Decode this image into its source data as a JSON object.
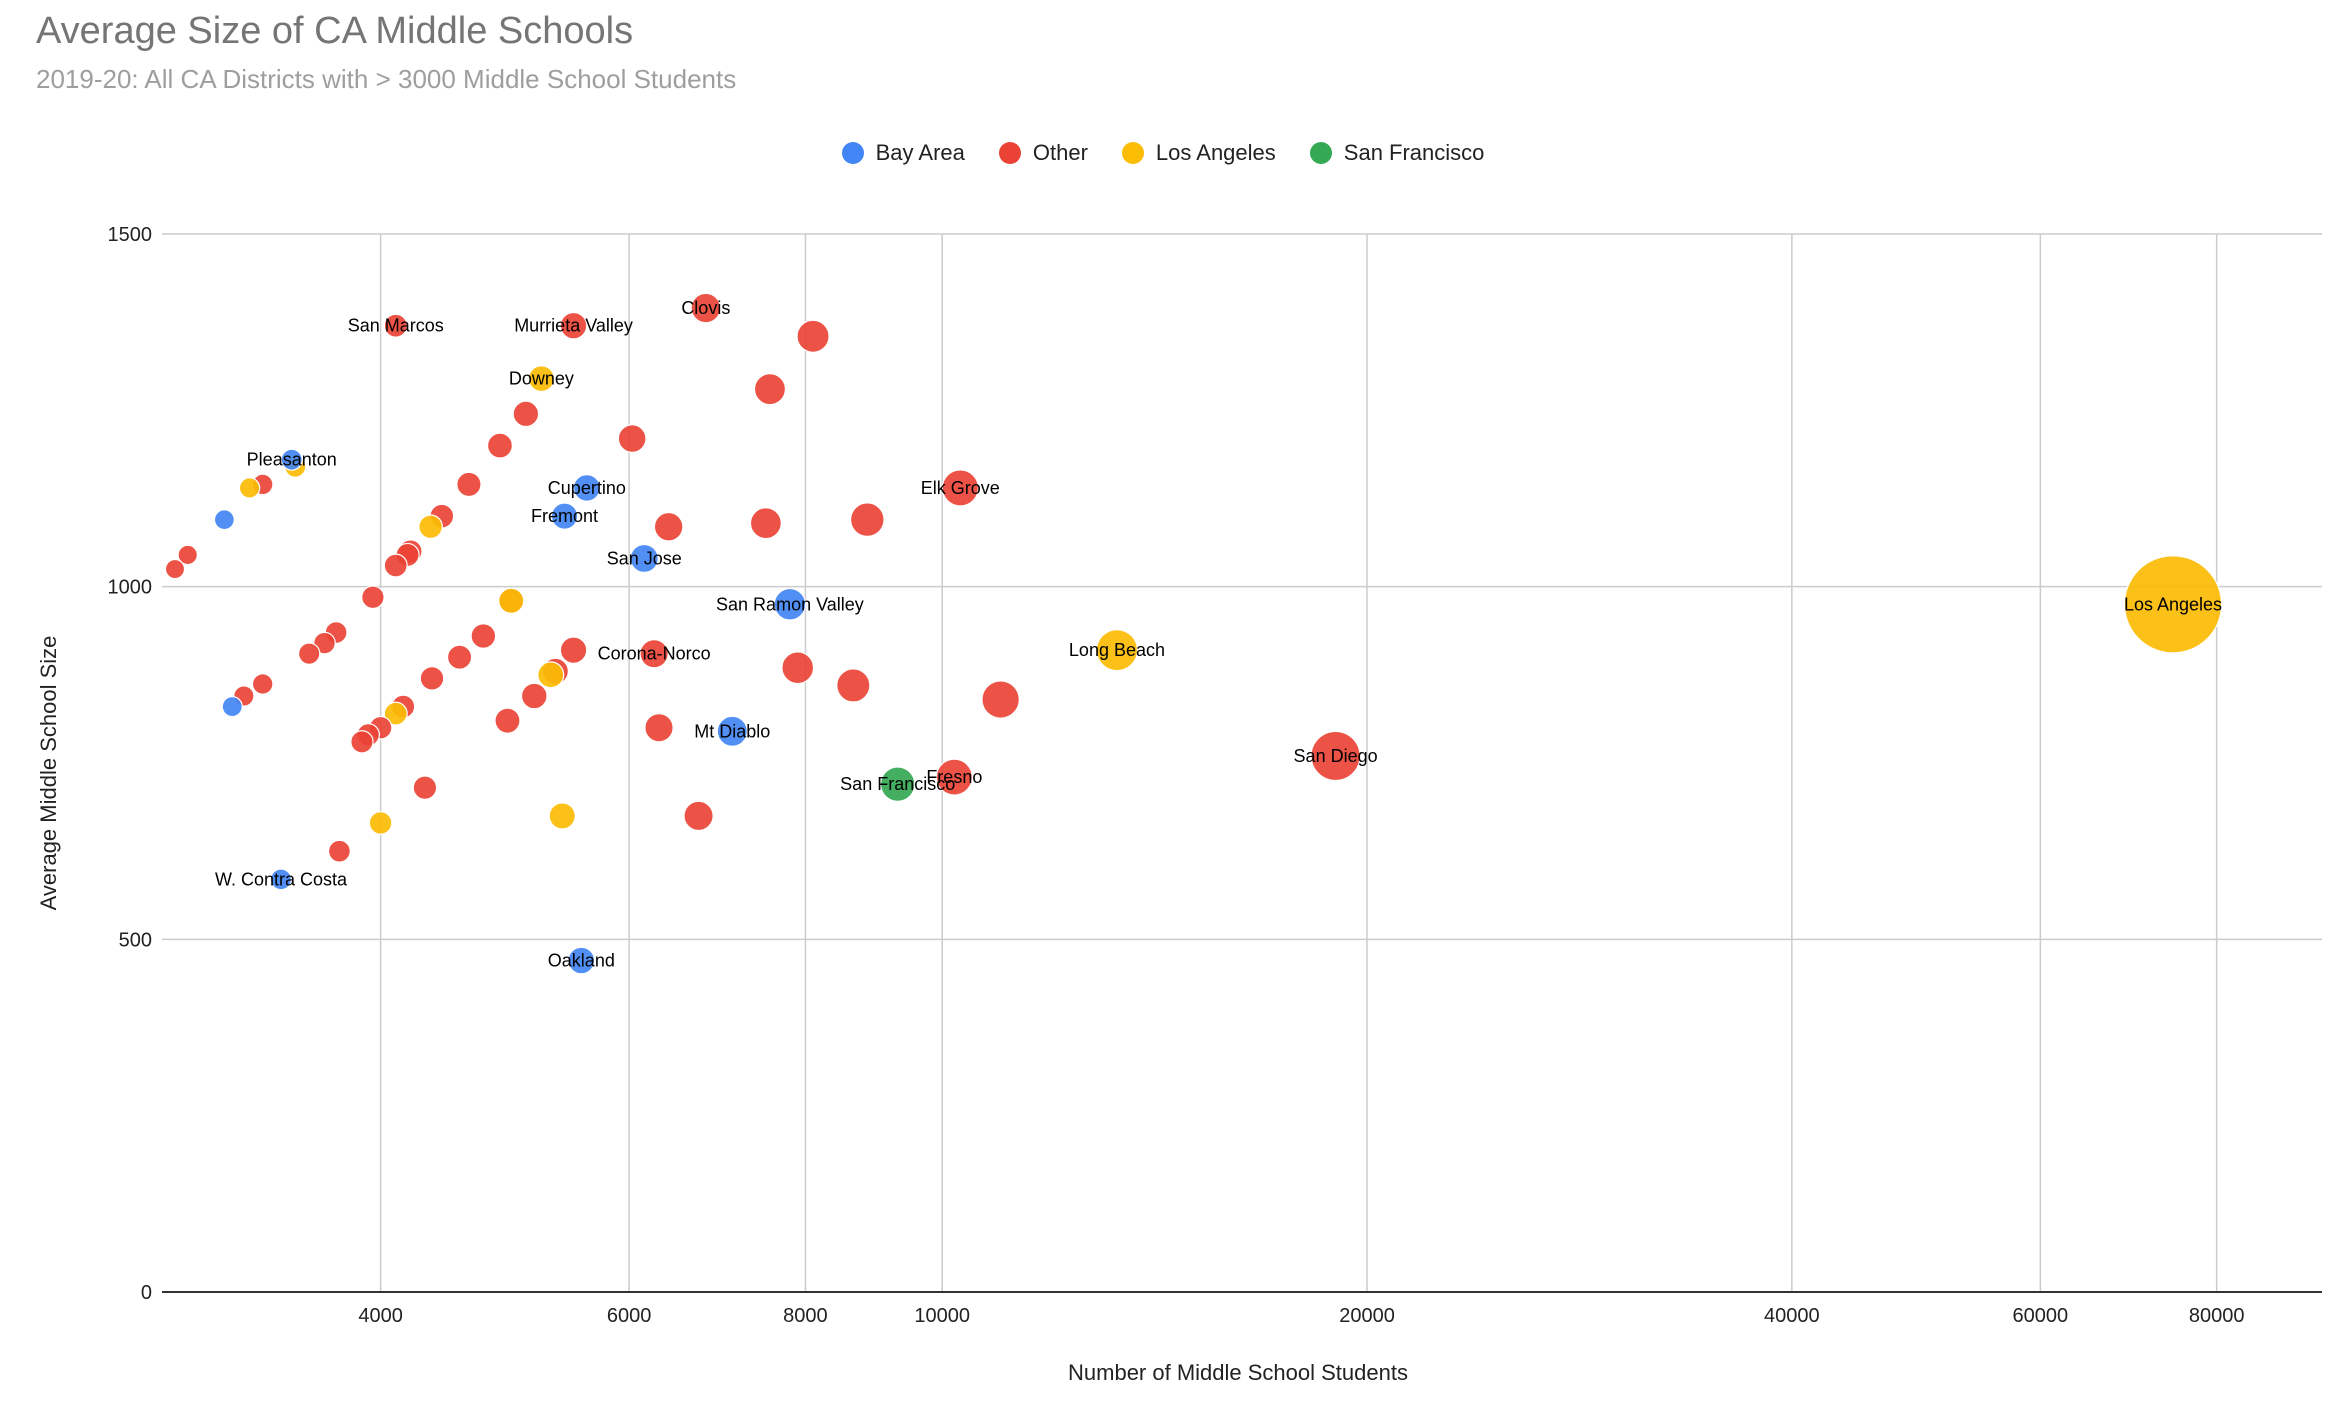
{
  "chart_data": {
    "type": "scatter",
    "title": "Average Size of CA Middle Schools",
    "subtitle": "2019-20: All CA Districts with > 3000 Middle School Students",
    "xlabel": "Number of Middle School Students",
    "ylabel": "Average Middle School Size",
    "x_scale": "log",
    "xlim": [
      2800,
      95000
    ],
    "ylim": [
      0,
      1500
    ],
    "x_ticks": [
      4000,
      6000,
      8000,
      10000,
      20000,
      40000,
      60000,
      80000
    ],
    "y_ticks": [
      0,
      500,
      1000,
      1500
    ],
    "grid": true,
    "legend_position": "top",
    "colors": {
      "Bay Area": "#4285f4",
      "Other": "#ea4335",
      "Los Angeles": "#fbbc04",
      "San Francisco": "#34a853"
    },
    "series": [
      {
        "name": "Bay Area",
        "points": [
          {
            "x": 3100,
            "y": 1095,
            "label": ""
          },
          {
            "x": 3140,
            "y": 830,
            "label": ""
          },
          {
            "x": 3460,
            "y": 1180,
            "label": "Pleasanton"
          },
          {
            "x": 3400,
            "y": 585,
            "label": "W. Contra Costa"
          },
          {
            "x": 5400,
            "y": 1100,
            "label": "Fremont"
          },
          {
            "x": 5600,
            "y": 1140,
            "label": "Cupertino"
          },
          {
            "x": 6150,
            "y": 1040,
            "label": "San Jose"
          },
          {
            "x": 5550,
            "y": 470,
            "label": "Oakland"
          },
          {
            "x": 7100,
            "y": 795,
            "label": "Mt Diablo"
          },
          {
            "x": 7800,
            "y": 975,
            "label": "San Ramon Valley"
          }
        ]
      },
      {
        "name": "Other",
        "points": [
          {
            "x": 2860,
            "y": 1025,
            "label": ""
          },
          {
            "x": 2920,
            "y": 1045,
            "label": ""
          },
          {
            "x": 3200,
            "y": 845,
            "label": ""
          },
          {
            "x": 3300,
            "y": 862,
            "label": ""
          },
          {
            "x": 3300,
            "y": 1145,
            "label": ""
          },
          {
            "x": 3560,
            "y": 905,
            "label": ""
          },
          {
            "x": 3650,
            "y": 920,
            "label": ""
          },
          {
            "x": 3720,
            "y": 935,
            "label": ""
          },
          {
            "x": 3740,
            "y": 625,
            "label": ""
          },
          {
            "x": 3880,
            "y": 780,
            "label": ""
          },
          {
            "x": 3920,
            "y": 790,
            "label": ""
          },
          {
            "x": 3950,
            "y": 985,
            "label": ""
          },
          {
            "x": 4000,
            "y": 800,
            "label": ""
          },
          {
            "x": 4100,
            "y": 1030,
            "label": ""
          },
          {
            "x": 4100,
            "y": 1370,
            "label": "San Marcos"
          },
          {
            "x": 4150,
            "y": 830,
            "label": ""
          },
          {
            "x": 4180,
            "y": 1045,
            "label": ""
          },
          {
            "x": 4200,
            "y": 1050,
            "label": ""
          },
          {
            "x": 4300,
            "y": 715,
            "label": ""
          },
          {
            "x": 4350,
            "y": 870,
            "label": ""
          },
          {
            "x": 4420,
            "y": 1100,
            "label": ""
          },
          {
            "x": 4550,
            "y": 900,
            "label": ""
          },
          {
            "x": 4620,
            "y": 1145,
            "label": ""
          },
          {
            "x": 4730,
            "y": 930,
            "label": ""
          },
          {
            "x": 4860,
            "y": 1200,
            "label": ""
          },
          {
            "x": 4920,
            "y": 810,
            "label": ""
          },
          {
            "x": 4950,
            "y": 980,
            "label": ""
          },
          {
            "x": 5070,
            "y": 1245,
            "label": ""
          },
          {
            "x": 5140,
            "y": 845,
            "label": ""
          },
          {
            "x": 5320,
            "y": 880,
            "label": ""
          },
          {
            "x": 5480,
            "y": 910,
            "label": ""
          },
          {
            "x": 5480,
            "y": 1370,
            "label": "Murrieta Valley"
          },
          {
            "x": 6030,
            "y": 1210,
            "label": ""
          },
          {
            "x": 6250,
            "y": 905,
            "label": "Corona-Norco"
          },
          {
            "x": 6300,
            "y": 800,
            "label": ""
          },
          {
            "x": 6400,
            "y": 1085,
            "label": ""
          },
          {
            "x": 6800,
            "y": 1395,
            "label": "Clovis"
          },
          {
            "x": 6720,
            "y": 675,
            "label": ""
          },
          {
            "x": 7500,
            "y": 1090,
            "label": ""
          },
          {
            "x": 7550,
            "y": 1280,
            "label": ""
          },
          {
            "x": 7900,
            "y": 885,
            "label": ""
          },
          {
            "x": 8100,
            "y": 1355,
            "label": ""
          },
          {
            "x": 8650,
            "y": 860,
            "label": ""
          },
          {
            "x": 8850,
            "y": 1095,
            "label": ""
          },
          {
            "x": 10200,
            "y": 730,
            "label": "Fresno"
          },
          {
            "x": 10300,
            "y": 1140,
            "label": "Elk Grove"
          },
          {
            "x": 11000,
            "y": 840,
            "label": ""
          },
          {
            "x": 19000,
            "y": 760,
            "label": "San Diego"
          }
        ]
      },
      {
        "name": "Los Angeles",
        "points": [
          {
            "x": 3230,
            "y": 1140,
            "label": ""
          },
          {
            "x": 3480,
            "y": 1170,
            "label": ""
          },
          {
            "x": 4000,
            "y": 665,
            "label": ""
          },
          {
            "x": 4100,
            "y": 820,
            "label": ""
          },
          {
            "x": 4340,
            "y": 1085,
            "label": ""
          },
          {
            "x": 4950,
            "y": 980,
            "label": ""
          },
          {
            "x": 5200,
            "y": 1295,
            "label": "Downey"
          },
          {
            "x": 5280,
            "y": 875,
            "label": ""
          },
          {
            "x": 5380,
            "y": 675,
            "label": ""
          },
          {
            "x": 13300,
            "y": 910,
            "label": "Long Beach"
          },
          {
            "x": 74500,
            "y": 975,
            "label": "Los Angeles"
          }
        ]
      },
      {
        "name": "San Francisco",
        "points": [
          {
            "x": 9300,
            "y": 720,
            "label": "San Francisco"
          }
        ]
      }
    ]
  }
}
